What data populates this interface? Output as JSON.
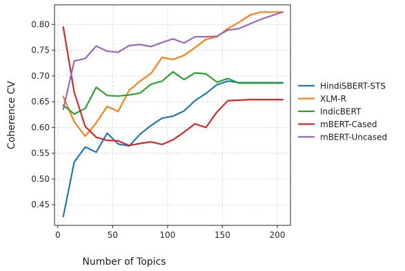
{
  "chart_data": {
    "type": "line",
    "xlabel": "Number of Topics",
    "ylabel": "Coherence CV",
    "xlim": [
      -3,
      212
    ],
    "ylim": [
      0.41,
      0.838
    ],
    "xticks": [
      0,
      50,
      100,
      150,
      200
    ],
    "xtick_labels": [
      "0",
      "50",
      "100",
      "150",
      "200"
    ],
    "yticks": [
      0.45,
      0.5,
      0.55,
      0.6,
      0.65,
      0.7,
      0.75,
      0.8
    ],
    "ytick_labels": [
      "0.45",
      "0.50",
      "0.55",
      "0.60",
      "0.65",
      "0.70",
      "0.75",
      "0.80"
    ],
    "grid": true,
    "legend_position": "right-outside",
    "x": [
      5,
      15,
      25,
      35,
      45,
      55,
      65,
      75,
      85,
      95,
      105,
      115,
      125,
      135,
      145,
      155,
      165,
      175,
      185,
      195,
      205
    ],
    "series": [
      {
        "name": "HindiSBERT-STS",
        "color": "#1f77b4",
        "values": [
          0.427,
          0.533,
          0.562,
          0.552,
          0.589,
          0.568,
          0.564,
          0.587,
          0.604,
          0.618,
          0.622,
          0.632,
          0.652,
          0.666,
          0.683,
          0.69,
          0.687,
          0.687,
          0.687,
          0.687,
          0.687
        ]
      },
      {
        "name": "XLM-R",
        "color": "#ff7f0e",
        "values": [
          0.66,
          0.611,
          0.583,
          0.609,
          0.641,
          0.631,
          0.672,
          0.69,
          0.705,
          0.736,
          0.732,
          0.74,
          0.755,
          0.771,
          0.776,
          0.792,
          0.804,
          0.818,
          0.824,
          0.824,
          0.824
        ]
      },
      {
        "name": "IndicBERT",
        "color": "#2ca02c",
        "values": [
          0.643,
          0.626,
          0.637,
          0.678,
          0.662,
          0.661,
          0.663,
          0.667,
          0.684,
          0.69,
          0.708,
          0.693,
          0.706,
          0.704,
          0.688,
          0.695,
          0.686,
          0.686,
          0.686,
          0.686,
          0.686
        ]
      },
      {
        "name": "mBERT-Cased",
        "color": "#d62728",
        "values": [
          0.795,
          0.668,
          0.602,
          0.581,
          0.575,
          0.574,
          0.565,
          0.569,
          0.572,
          0.567,
          0.576,
          0.591,
          0.607,
          0.6,
          0.63,
          0.652,
          0.653,
          0.654,
          0.654,
          0.654,
          0.654
        ]
      },
      {
        "name": "mBERT-Uncased",
        "color": "#9467bd",
        "values": [
          0.635,
          0.729,
          0.734,
          0.758,
          0.748,
          0.746,
          0.759,
          0.761,
          0.757,
          0.765,
          0.772,
          0.764,
          0.776,
          0.776,
          0.777,
          0.789,
          0.792,
          0.801,
          0.81,
          0.817,
          0.824
        ]
      }
    ]
  }
}
